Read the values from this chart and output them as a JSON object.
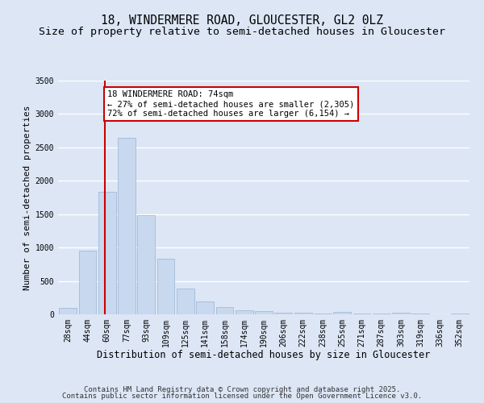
{
  "title": "18, WINDERMERE ROAD, GLOUCESTER, GL2 0LZ",
  "subtitle": "Size of property relative to semi-detached houses in Gloucester",
  "xlabel": "Distribution of semi-detached houses by size in Gloucester",
  "ylabel": "Number of semi-detached properties",
  "categories": [
    "28sqm",
    "44sqm",
    "60sqm",
    "77sqm",
    "93sqm",
    "109sqm",
    "125sqm",
    "141sqm",
    "158sqm",
    "174sqm",
    "190sqm",
    "206sqm",
    "222sqm",
    "238sqm",
    "255sqm",
    "271sqm",
    "287sqm",
    "303sqm",
    "319sqm",
    "336sqm",
    "352sqm"
  ],
  "values": [
    95,
    950,
    1840,
    2640,
    1490,
    830,
    390,
    195,
    110,
    60,
    45,
    30,
    20,
    15,
    35,
    15,
    10,
    30,
    10,
    5,
    10
  ],
  "bar_color": "#c8d8ee",
  "bar_edge_color": "#9ab4d4",
  "property_line_x": 1.87,
  "property_line_color": "#cc0000",
  "annotation_text": "18 WINDERMERE ROAD: 74sqm\n← 27% of semi-detached houses are smaller (2,305)\n72% of semi-detached houses are larger (6,154) →",
  "annotation_box_color": "#cc0000",
  "ylim": [
    0,
    3500
  ],
  "footnote1": "Contains HM Land Registry data © Crown copyright and database right 2025.",
  "footnote2": "Contains public sector information licensed under the Open Government Licence v3.0.",
  "background_color": "#dce6f5",
  "plot_bg_color": "#dce6f5",
  "grid_color": "#ffffff",
  "title_fontsize": 10.5,
  "subtitle_fontsize": 9.5,
  "xlabel_fontsize": 8.5,
  "ylabel_fontsize": 8,
  "tick_fontsize": 7,
  "annotation_fontsize": 7.5,
  "footnote_fontsize": 6.5
}
